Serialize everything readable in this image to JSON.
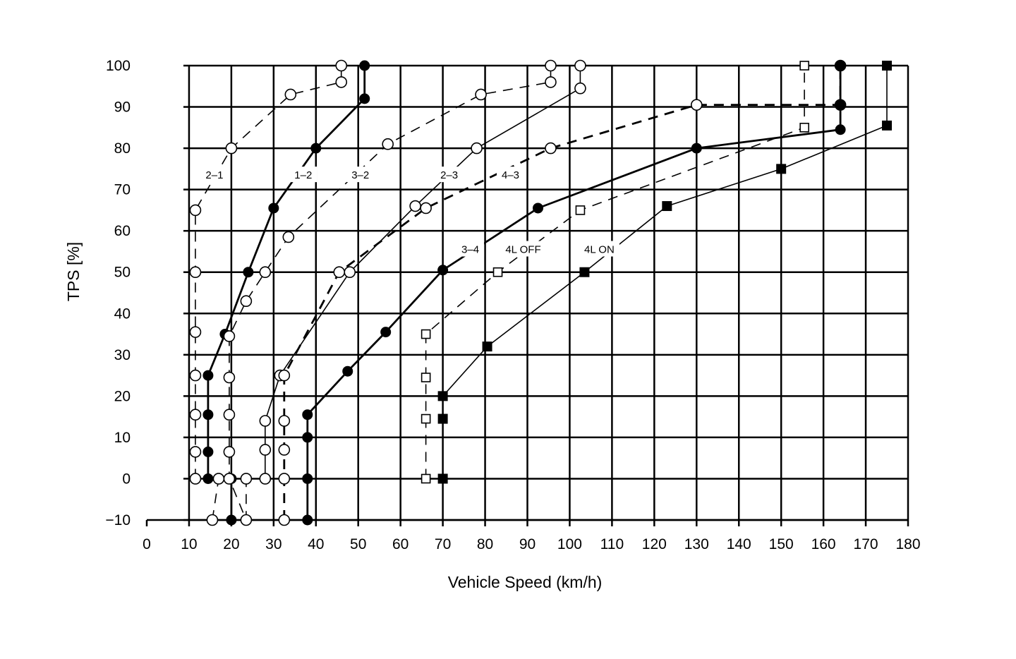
{
  "chart_data": {
    "type": "line",
    "title": "",
    "xlabel": "Vehicle Speed (km/h)",
    "ylabel": "TPS [%]",
    "xlim": [
      0,
      180
    ],
    "ylim": [
      -10,
      100
    ],
    "x_ticks": [
      0,
      10,
      20,
      30,
      40,
      50,
      60,
      70,
      80,
      90,
      100,
      110,
      120,
      130,
      140,
      150,
      160,
      170,
      180
    ],
    "y_ticks": [
      -10,
      0,
      10,
      20,
      30,
      40,
      50,
      60,
      70,
      80,
      90,
      100
    ],
    "x_tick_labels": [
      "0",
      "10",
      "20",
      "30",
      "40",
      "50",
      "60",
      "70",
      "80",
      "90",
      "100",
      "110",
      "120",
      "130",
      "140",
      "150",
      "160",
      "170",
      "180"
    ],
    "y_tick_labels": [
      "−10",
      "0",
      "10",
      "20",
      "30",
      "40",
      "50",
      "60",
      "70",
      "80",
      "90",
      "100"
    ],
    "x_grid_from": 10,
    "grid": true,
    "legend": "none",
    "series": [
      {
        "name": "2–1",
        "line": "dashed",
        "weight": "thin",
        "marker": "open-circle",
        "points": [
          [
            11.5,
            0
          ],
          [
            11.5,
            6.5
          ],
          [
            11.5,
            15.5
          ],
          [
            11.5,
            25
          ],
          [
            11.5,
            35.5
          ],
          [
            11.5,
            50
          ],
          [
            11.5,
            65
          ],
          [
            20,
            80
          ],
          [
            34,
            93
          ],
          [
            46,
            96
          ],
          [
            46,
            100
          ]
        ]
      },
      {
        "name": "1–2",
        "line": "solid",
        "weight": "thick",
        "marker": "filled-circle",
        "points": [
          [
            20,
            -10
          ],
          [
            20,
            0
          ],
          [
            14.5,
            0
          ],
          [
            14.5,
            6.5
          ],
          [
            14.5,
            15.5
          ],
          [
            14.5,
            25
          ],
          [
            18.5,
            35
          ],
          [
            24,
            50
          ],
          [
            30,
            65.5
          ],
          [
            40,
            80
          ],
          [
            51.5,
            92
          ],
          [
            51.5,
            100
          ]
        ]
      },
      {
        "name": "3–2",
        "line": "dashed",
        "weight": "thin",
        "marker": "open-circle",
        "points": [
          [
            15.5,
            -10
          ],
          [
            17,
            0
          ],
          [
            23.5,
            0
          ],
          [
            23.5,
            -10
          ],
          [
            19.5,
            0
          ],
          [
            19.5,
            6.5
          ],
          [
            19.5,
            15.5
          ],
          [
            19.5,
            24.5
          ],
          [
            19.5,
            34.5
          ],
          [
            23.5,
            43
          ],
          [
            28,
            50
          ],
          [
            33.5,
            58.5
          ],
          [
            57,
            81
          ],
          [
            79,
            93
          ],
          [
            95.5,
            96
          ],
          [
            95.5,
            100
          ]
        ]
      },
      {
        "name": "2–3",
        "line": "solid",
        "weight": "thin",
        "marker": "open-circle",
        "points": [
          [
            28,
            0
          ],
          [
            28,
            7
          ],
          [
            28,
            14
          ],
          [
            31.5,
            25
          ],
          [
            48,
            50
          ],
          [
            63.5,
            66
          ],
          [
            78,
            80
          ],
          [
            102.5,
            94.5
          ],
          [
            102.5,
            100
          ]
        ]
      },
      {
        "name": "4–3",
        "line": "dashed",
        "weight": "thick",
        "marker": "open-circle",
        "points": [
          [
            32.5,
            -10
          ],
          [
            32.5,
            0
          ],
          [
            32.5,
            7
          ],
          [
            32.5,
            14
          ],
          [
            32.5,
            25
          ],
          [
            45.5,
            50
          ],
          [
            66,
            65.5
          ],
          [
            95.5,
            80
          ],
          [
            130,
            90.5
          ],
          [
            164,
            90.5
          ],
          [
            164,
            100
          ]
        ]
      },
      {
        "name": "3–4",
        "line": "solid",
        "weight": "thick",
        "marker": "filled-circle",
        "points": [
          [
            38,
            -10
          ],
          [
            38,
            0
          ],
          [
            38,
            10
          ],
          [
            38,
            15.5
          ],
          [
            47.5,
            26
          ],
          [
            56.5,
            35.5
          ],
          [
            70,
            50.5
          ],
          [
            92.5,
            65.5
          ],
          [
            130,
            80
          ],
          [
            164,
            84.5
          ],
          [
            164,
            90.5
          ],
          [
            164,
            100
          ]
        ]
      },
      {
        "name": "4L OFF",
        "line": "dashed",
        "weight": "thin",
        "marker": "open-square",
        "points": [
          [
            66,
            0
          ],
          [
            66,
            14.5
          ],
          [
            66,
            24.5
          ],
          [
            66,
            35
          ],
          [
            83,
            50
          ],
          [
            102.5,
            65
          ],
          [
            155.5,
            85
          ],
          [
            155.5,
            100
          ]
        ]
      },
      {
        "name": "4L ON",
        "line": "solid",
        "weight": "thin",
        "marker": "filled-square",
        "points": [
          [
            70,
            0
          ],
          [
            70,
            14.5
          ],
          [
            70,
            20
          ],
          [
            80.5,
            32
          ],
          [
            103.5,
            50
          ],
          [
            123,
            66
          ],
          [
            150,
            75
          ],
          [
            175,
            85.5
          ],
          [
            175,
            100
          ]
        ]
      }
    ],
    "series_label_positions": [
      {
        "name": "2–1",
        "x": 16,
        "y": 73.5
      },
      {
        "name": "1–2",
        "x": 37,
        "y": 73.5
      },
      {
        "name": "3–2",
        "x": 50.5,
        "y": 73.5
      },
      {
        "name": "2–3",
        "x": 71.5,
        "y": 73.5
      },
      {
        "name": "4–3",
        "x": 86,
        "y": 73.5
      },
      {
        "name": "3–4",
        "x": 76.5,
        "y": 55.5
      },
      {
        "name": "4L OFF",
        "x": 89,
        "y": 55.5
      },
      {
        "name": "4L ON",
        "x": 107,
        "y": 55.5
      }
    ]
  }
}
